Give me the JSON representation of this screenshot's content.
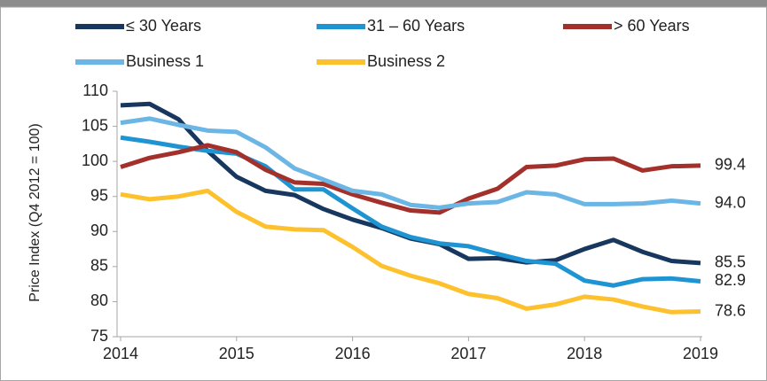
{
  "chart_data": {
    "type": "line",
    "y_label": "Price Index (Q4 2012 = 100)",
    "x": [
      2014,
      2014.25,
      2014.5,
      2014.75,
      2015,
      2015.25,
      2015.5,
      2015.75,
      2016,
      2016.25,
      2016.5,
      2016.75,
      2017,
      2017.25,
      2017.5,
      2017.75,
      2018,
      2018.25,
      2018.5,
      2018.75,
      2019
    ],
    "xlim": [
      2014,
      2019
    ],
    "xticks": [
      2014,
      2015,
      2016,
      2017,
      2018,
      2019
    ],
    "ylim": [
      75,
      110
    ],
    "yticks": [
      75,
      80,
      85,
      90,
      95,
      100,
      105,
      110
    ],
    "grid": false,
    "legend": "top",
    "series": [
      {
        "name": "≤ 30 Years",
        "color": "#17375e",
        "values": [
          108,
          108.2,
          106,
          101.5,
          97.8,
          95.8,
          95.2,
          93.2,
          91.7,
          90.5,
          89,
          88.2,
          86.1,
          86.2,
          85.6,
          85.9,
          87.5,
          88.8,
          87.1,
          85.8,
          85.5
        ],
        "value_labels": [
          null,
          null,
          null,
          null,
          null,
          null,
          null,
          null,
          null,
          null,
          null,
          null,
          null,
          null,
          null,
          null,
          null,
          null,
          null,
          null,
          "85.5"
        ]
      },
      {
        "name": "31 – 60 Years",
        "color": "#1f94d2",
        "values": [
          103.4,
          102.8,
          102.1,
          101.5,
          101.1,
          99.3,
          96,
          96,
          93.3,
          90.7,
          89.2,
          88.3,
          87.9,
          86.8,
          85.8,
          85.4,
          83,
          82.3,
          83.2,
          83.3,
          82.9
        ],
        "value_labels": [
          null,
          null,
          null,
          null,
          null,
          null,
          null,
          null,
          null,
          null,
          null,
          null,
          null,
          null,
          null,
          null,
          null,
          null,
          null,
          null,
          "82.9"
        ]
      },
      {
        "name": "> 60 Years",
        "color": "#a3302a",
        "values": [
          99.2,
          100.5,
          101.3,
          102.3,
          101.3,
          98.8,
          97,
          96.8,
          95.3,
          94.1,
          93,
          92.7,
          94.7,
          96.1,
          99.2,
          99.4,
          100.3,
          100.4,
          98.7,
          99.3,
          99.4
        ],
        "value_labels": [
          null,
          null,
          null,
          null,
          null,
          null,
          null,
          null,
          null,
          null,
          null,
          null,
          null,
          null,
          null,
          null,
          null,
          null,
          null,
          null,
          "99.4"
        ]
      },
      {
        "name": "Business 1",
        "color": "#6cb6e6",
        "values": [
          105.5,
          106.1,
          105.2,
          104.4,
          104.2,
          102,
          99,
          97.4,
          95.8,
          95.3,
          93.8,
          93.4,
          94,
          94.2,
          95.6,
          95.3,
          93.9,
          93.9,
          94,
          94.4,
          94.0
        ],
        "value_labels": [
          null,
          null,
          null,
          null,
          null,
          null,
          null,
          null,
          null,
          null,
          null,
          null,
          null,
          null,
          null,
          null,
          null,
          null,
          null,
          null,
          "94.0"
        ]
      },
      {
        "name": "Business 2",
        "color": "#fdc12e",
        "values": [
          95.3,
          94.6,
          95,
          95.8,
          92.8,
          90.7,
          90.3,
          90.2,
          87.8,
          85.1,
          83.7,
          82.6,
          81.1,
          80.5,
          79,
          79.6,
          80.7,
          80.3,
          79.3,
          78.5,
          78.6
        ],
        "value_labels": [
          null,
          null,
          null,
          null,
          null,
          null,
          null,
          null,
          null,
          null,
          null,
          null,
          null,
          null,
          null,
          null,
          null,
          null,
          null,
          null,
          "78.6"
        ]
      }
    ]
  }
}
